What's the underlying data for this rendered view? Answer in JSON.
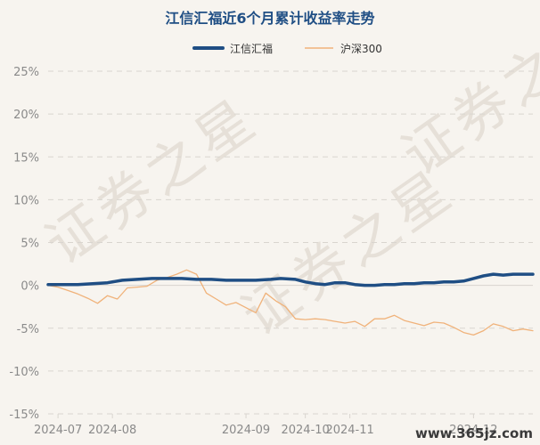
{
  "watermark": "证券之星",
  "site_label": "www.365jz.com",
  "colors": {
    "background": "#f7f4ef",
    "primary": "#1f4e84",
    "benchmark": "#f0b27a",
    "grid": "#d9d5cf",
    "axis_text": "#8a8a8a"
  },
  "chart_data": {
    "type": "line",
    "title": "江信汇福近6个月累计收益率走势",
    "legend_position": "top-center",
    "grid": true,
    "y_unit": "%",
    "ylim": [
      -15,
      25
    ],
    "yticks": [
      25,
      20,
      15,
      10,
      5,
      0,
      -5,
      -10,
      -15
    ],
    "ytick_labels": [
      "25%",
      "20%",
      "15%",
      "10%",
      "5%",
      "0%",
      "-5%",
      "-10%",
      "-15%"
    ],
    "xlim": [
      0,
      98
    ],
    "xticks": [
      {
        "label": "2024-07",
        "x": 2
      },
      {
        "label": "2024-08",
        "x": 13
      },
      {
        "label": "2024-09",
        "x": 40
      },
      {
        "label": "2024-10",
        "x": 52
      },
      {
        "label": "2024-11",
        "x": 61
      },
      {
        "label": "2024-12",
        "x": 86
      }
    ],
    "series": [
      {
        "name": "江信汇福",
        "points": [
          [
            0,
            0.1
          ],
          [
            3,
            0.1
          ],
          [
            6,
            0.1
          ],
          [
            9,
            0.2
          ],
          [
            12,
            0.3
          ],
          [
            15,
            0.6
          ],
          [
            18,
            0.7
          ],
          [
            21,
            0.8
          ],
          [
            24,
            0.8
          ],
          [
            27,
            0.8
          ],
          [
            30,
            0.7
          ],
          [
            33,
            0.7
          ],
          [
            36,
            0.6
          ],
          [
            39,
            0.6
          ],
          [
            42,
            0.6
          ],
          [
            45,
            0.7
          ],
          [
            47,
            0.8
          ],
          [
            50,
            0.7
          ],
          [
            52,
            0.4
          ],
          [
            54,
            0.2
          ],
          [
            56,
            0.1
          ],
          [
            58,
            0.3
          ],
          [
            60,
            0.3
          ],
          [
            62,
            0.1
          ],
          [
            64,
            0
          ],
          [
            66,
            0
          ],
          [
            68,
            0.1
          ],
          [
            70,
            0.1
          ],
          [
            72,
            0.2
          ],
          [
            74,
            0.2
          ],
          [
            76,
            0.3
          ],
          [
            78,
            0.3
          ],
          [
            80,
            0.4
          ],
          [
            82,
            0.4
          ],
          [
            84,
            0.5
          ],
          [
            86,
            0.8
          ],
          [
            88,
            1.1
          ],
          [
            90,
            1.3
          ],
          [
            92,
            1.2
          ],
          [
            94,
            1.3
          ],
          [
            96,
            1.3
          ],
          [
            98,
            1.3
          ]
        ]
      },
      {
        "name": "沪深300",
        "points": [
          [
            0,
            0
          ],
          [
            2,
            -0.2
          ],
          [
            4,
            -0.6
          ],
          [
            6,
            -1
          ],
          [
            8,
            -1.5
          ],
          [
            10,
            -2.1
          ],
          [
            12,
            -1.2
          ],
          [
            14,
            -1.6
          ],
          [
            16,
            -0.3
          ],
          [
            18,
            -0.2
          ],
          [
            20,
            -0.1
          ],
          [
            22,
            0.6
          ],
          [
            24,
            0.9
          ],
          [
            26,
            1.3
          ],
          [
            28,
            1.8
          ],
          [
            30,
            1.3
          ],
          [
            32,
            -0.9
          ],
          [
            34,
            -1.6
          ],
          [
            36,
            -2.3
          ],
          [
            38,
            -2
          ],
          [
            40,
            -2.6
          ],
          [
            42,
            -3.2
          ],
          [
            44,
            -0.9
          ],
          [
            46,
            -1.8
          ],
          [
            48,
            -2.5
          ],
          [
            50,
            -3.9
          ],
          [
            52,
            -4
          ],
          [
            54,
            -3.9
          ],
          [
            56,
            -4
          ],
          [
            58,
            -4.2
          ],
          [
            60,
            -4.4
          ],
          [
            62,
            -4.2
          ],
          [
            64,
            -4.8
          ],
          [
            66,
            -3.9
          ],
          [
            68,
            -3.9
          ],
          [
            70,
            -3.5
          ],
          [
            72,
            -4.1
          ],
          [
            74,
            -4.4
          ],
          [
            76,
            -4.7
          ],
          [
            78,
            -4.3
          ],
          [
            80,
            -4.4
          ],
          [
            82,
            -4.9
          ],
          [
            84,
            -5.5
          ],
          [
            86,
            -5.8
          ],
          [
            88,
            -5.3
          ],
          [
            90,
            -4.5
          ],
          [
            92,
            -4.8
          ],
          [
            94,
            -5.3
          ],
          [
            96,
            -5.1
          ],
          [
            98,
            -5.3
          ]
        ]
      }
    ]
  }
}
